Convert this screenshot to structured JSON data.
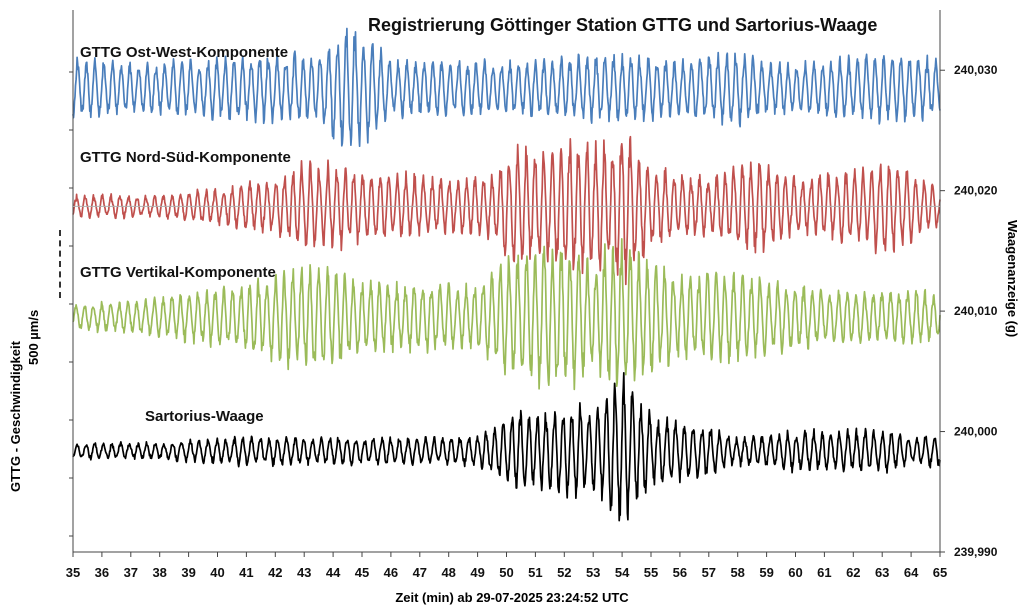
{
  "chart_data": {
    "type": "line",
    "title": "Registrierung Göttinger Station GTTG   und   Sartorius-Waage",
    "xlabel": "Zeit (min) ab 29-07-2025  23:24:52 UTC",
    "ylabel_left": "GTTG - Geschwindigkeit",
    "scale_label": "500 µm/s",
    "ylabel_right": "Waagenanzeige (g)",
    "xlim": [
      35,
      65
    ],
    "ylim_right": [
      239.99,
      240.035
    ],
    "x_ticks": [
      "35",
      "36",
      "37",
      "38",
      "39",
      "40",
      "41",
      "42",
      "43",
      "44",
      "45",
      "46",
      "47",
      "48",
      "49",
      "50",
      "51",
      "52",
      "53",
      "54",
      "55",
      "56",
      "57",
      "58",
      "59",
      "60",
      "61",
      "62",
      "63",
      "64",
      "65"
    ],
    "y_ticks_right": [
      "240,030",
      "240,020",
      "240,010",
      "240,000",
      "239,990"
    ],
    "y_tick_values_right": [
      240.03,
      240.02,
      240.01,
      240.0,
      239.99
    ],
    "series": [
      {
        "name": "GTTG Ost-West-Komponente",
        "color": "#4a7ebb",
        "baseline": 240.0285,
        "envelope": [
          [
            35.0,
            0.0028
          ],
          [
            37.0,
            0.0022
          ],
          [
            39.0,
            0.0025
          ],
          [
            41.0,
            0.003
          ],
          [
            43.0,
            0.003
          ],
          [
            43.5,
            0.0028
          ],
          [
            44.0,
            0.0048
          ],
          [
            44.6,
            0.0055
          ],
          [
            45.3,
            0.0046
          ],
          [
            46.0,
            0.0024
          ],
          [
            48.0,
            0.0025
          ],
          [
            50.0,
            0.0023
          ],
          [
            52.0,
            0.0028
          ],
          [
            54.0,
            0.003
          ],
          [
            56.0,
            0.0024
          ],
          [
            57.8,
            0.0035
          ],
          [
            59.0,
            0.0022
          ],
          [
            61.0,
            0.0025
          ],
          [
            63.0,
            0.003
          ],
          [
            65.0,
            0.0026
          ]
        ]
      },
      {
        "name": "GTTG Nord-Süd-Komponente",
        "color": "#c0504d",
        "baseline": 240.0187,
        "envelope": [
          [
            35.0,
            0.001
          ],
          [
            38.0,
            0.001
          ],
          [
            40.0,
            0.0016
          ],
          [
            42.0,
            0.0025
          ],
          [
            43.0,
            0.004
          ],
          [
            44.0,
            0.0038
          ],
          [
            46.0,
            0.003
          ],
          [
            48.0,
            0.0025
          ],
          [
            49.5,
            0.003
          ],
          [
            50.4,
            0.0055
          ],
          [
            51.5,
            0.005
          ],
          [
            52.2,
            0.0062
          ],
          [
            53.5,
            0.0055
          ],
          [
            54.0,
            0.0072
          ],
          [
            55.0,
            0.0036
          ],
          [
            57.0,
            0.0025
          ],
          [
            58.6,
            0.0045
          ],
          [
            60.0,
            0.0025
          ],
          [
            62.5,
            0.0035
          ],
          [
            63.2,
            0.0045
          ],
          [
            65.0,
            0.0018
          ]
        ]
      },
      {
        "name": "GTTG Vertikal-Komponente",
        "color": "#9bbb59",
        "baseline": 240.0095,
        "envelope": [
          [
            35.0,
            0.0012
          ],
          [
            37.0,
            0.0014
          ],
          [
            39.0,
            0.0022
          ],
          [
            41.0,
            0.003
          ],
          [
            42.5,
            0.0045
          ],
          [
            43.5,
            0.0048
          ],
          [
            45.0,
            0.0032
          ],
          [
            47.0,
            0.003
          ],
          [
            49.0,
            0.0028
          ],
          [
            50.0,
            0.0055
          ],
          [
            51.0,
            0.006
          ],
          [
            52.0,
            0.0068
          ],
          [
            53.0,
            0.005
          ],
          [
            53.8,
            0.0075
          ],
          [
            54.5,
            0.006
          ],
          [
            56.0,
            0.0038
          ],
          [
            58.0,
            0.004
          ],
          [
            60.0,
            0.003
          ],
          [
            62.0,
            0.0022
          ],
          [
            64.0,
            0.0025
          ],
          [
            65.0,
            0.0022
          ]
        ]
      },
      {
        "name": "Sartorius-Waage",
        "color": "#000000",
        "baseline": 239.9984,
        "envelope": [
          [
            35.0,
            0.0007
          ],
          [
            37.0,
            0.0007
          ],
          [
            39.0,
            0.0009
          ],
          [
            41.0,
            0.0013
          ],
          [
            43.0,
            0.0012
          ],
          [
            45.0,
            0.0013
          ],
          [
            47.0,
            0.0012
          ],
          [
            49.0,
            0.0014
          ],
          [
            50.3,
            0.0035
          ],
          [
            51.5,
            0.0035
          ],
          [
            52.2,
            0.0042
          ],
          [
            53.2,
            0.0038
          ],
          [
            54.0,
            0.007
          ],
          [
            55.0,
            0.0032
          ],
          [
            57.0,
            0.0022
          ],
          [
            58.0,
            0.0012
          ],
          [
            60.0,
            0.0018
          ],
          [
            62.0,
            0.0018
          ],
          [
            63.0,
            0.002
          ],
          [
            64.0,
            0.0012
          ],
          [
            65.0,
            0.0015
          ]
        ]
      }
    ]
  }
}
